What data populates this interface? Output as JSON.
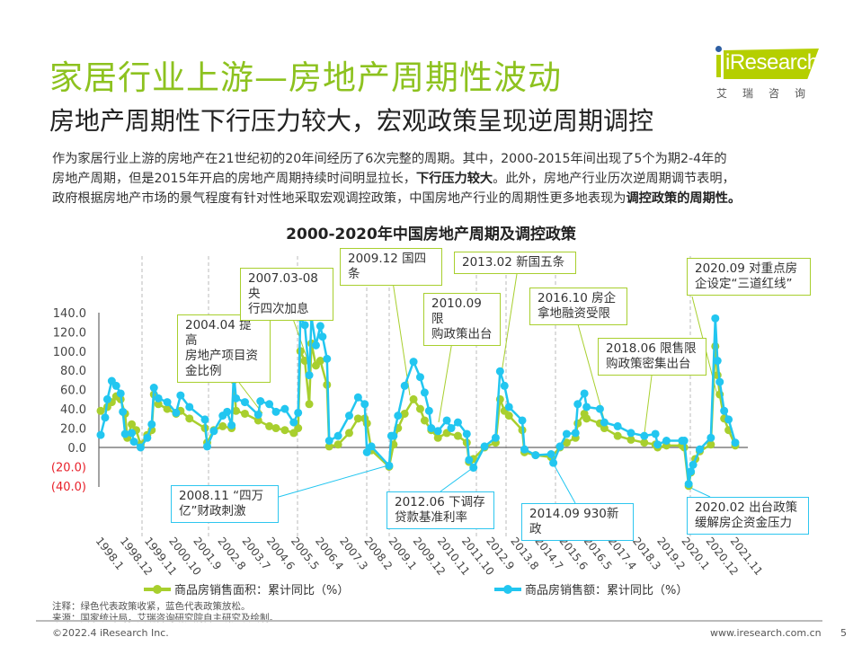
{
  "header": {
    "title": "家居行业上游—房地产周期性波动",
    "subtitle": "房地产周期性下行压力较大，宏观政策呈现逆周期调控",
    "logo_text": "iResearch",
    "logo_cn": "艾瑞咨询"
  },
  "body": {
    "line1": "作为家居行业上游的房地产在21世纪初的20年间经历了6次完整的周期。其中，2000-2015年间出现了5个为期2-4年的",
    "line2a": "房地产周期，但是2015年开启的房地产周期持续时间明显拉长，",
    "line2b": "下行压力较大",
    "line2c": "。此外，房地产行业历次逆周期调节表明，",
    "line3a": "政府根据房地产市场的景气程度有针对性地采取宏观调控政策，中国房地产行业的周期性更多地表现为",
    "line3b": "调控政策的周期性。"
  },
  "colors": {
    "title_green": "#8dc21f",
    "area_series": "#a8cf2e",
    "amount_series": "#22c6f0",
    "negative_tick": "#e8202a"
  },
  "annotations": {
    "a2004": {
      "l1": "2004.04 提高",
      "l2": "房地产项目资",
      "l3": "金比例"
    },
    "a2007": {
      "l1": "2007.03-08 央",
      "l2": "行四次加息"
    },
    "a2009": {
      "l1": "2009.12 国四条"
    },
    "a2010": {
      "l1": "2010.09 限",
      "l2": "购政策出台"
    },
    "a2013": {
      "l1": "2013.02 新国五条"
    },
    "a2016": {
      "l1": "2016.10 房企",
      "l2": "拿地融资受限"
    },
    "a2018": {
      "l1": "2018.06 限售限",
      "l2": "购政策密集出台"
    },
    "a2020s": {
      "l1": "2020.09 对重点房",
      "l2": "企设定“三道红线”"
    },
    "a2008": {
      "l1": "2008.11 “四万",
      "l2": "亿”财政刺激"
    },
    "a2012": {
      "l1": "2012.06 下调存",
      "l2": "贷款基准利率"
    },
    "a2014": {
      "l1": "2014.09 930新政"
    },
    "a2020": {
      "l1": "2020.02 出台政策",
      "l2": "缓解房企资金压力"
    }
  },
  "chart_data": {
    "type": "line",
    "title": "2000-2020年中国房地产周期及调控政策",
    "ylim": [
      -40,
      140
    ],
    "yticks": [
      "140.0",
      "120.0",
      "100.0",
      "80.0",
      "60.0",
      "40.0",
      "20.0",
      "0.0",
      "(20.0)",
      "(40.0)"
    ],
    "ytick_values": [
      140,
      120,
      100,
      80,
      60,
      40,
      20,
      0,
      -20,
      -40
    ],
    "xticks": [
      "1998.1",
      "1998.12",
      "1999.11",
      "2000.10",
      "2001.9",
      "2002.8",
      "2003.7",
      "2004.6",
      "2005.5",
      "2006.4",
      "2007.3",
      "2008.2",
      "2009.1",
      "2009.12",
      "2010.11",
      "2011.10",
      "2012.9",
      "2013.8",
      "2014.7",
      "2015.6",
      "2016.5",
      "2017.4",
      "2018.3",
      "2019.2",
      "2020.1",
      "2020.12",
      "2021.11"
    ],
    "legend": "bottom",
    "grid": false,
    "series": [
      {
        "name": "商品房销售面积：累计同比（%）",
        "color": "#a8cf2e",
        "points": [
          [
            "1998.1",
            38
          ],
          [
            "1998.4",
            42
          ],
          [
            "1998.6",
            47
          ],
          [
            "1998.8",
            53
          ],
          [
            "1998.10",
            50
          ],
          [
            "1998.12",
            35
          ],
          [
            "1999.1",
            10
          ],
          [
            "1999.3",
            24
          ],
          [
            "1999.5",
            18
          ],
          [
            "1999.7",
            3
          ],
          [
            "1999.10",
            13
          ],
          [
            "1999.12",
            18
          ],
          [
            "2000.1",
            55
          ],
          [
            "2000.3",
            45
          ],
          [
            "2000.7",
            40
          ],
          [
            "2000.11",
            35
          ],
          [
            "2001.1",
            38
          ],
          [
            "2001.5",
            30
          ],
          [
            "2001.12",
            20
          ],
          [
            "2002.1",
            5
          ],
          [
            "2002.4",
            18
          ],
          [
            "2002.8",
            22
          ],
          [
            "2002.12",
            20
          ],
          [
            "2003.1",
            70
          ],
          [
            "2003.2",
            38
          ],
          [
            "2003.6",
            35
          ],
          [
            "2003.12",
            28
          ],
          [
            "2004.5",
            22
          ],
          [
            "2004.8",
            20
          ],
          [
            "2004.12",
            18
          ],
          [
            "2005.4",
            15
          ],
          [
            "2005.6",
            20
          ],
          [
            "2005.7",
            100
          ],
          [
            "2005.9",
            90
          ],
          [
            "2005.11",
            45
          ],
          [
            "2005.12",
            108
          ],
          [
            "2006.2",
            85
          ],
          [
            "2006.4",
            90
          ],
          [
            "2006.7",
            65
          ],
          [
            "2006.8",
            1
          ],
          [
            "2006.12",
            3
          ],
          [
            "2007.5",
            15
          ],
          [
            "2007.9",
            30
          ],
          [
            "2007.12",
            30
          ],
          [
            "2008.1",
            25
          ],
          [
            "2008.3",
            -3
          ],
          [
            "2008.11",
            -20
          ],
          [
            "2009.1",
            3
          ],
          [
            "2009.3",
            20
          ],
          [
            "2009.6",
            35
          ],
          [
            "2009.10",
            50
          ],
          [
            "2010.1",
            40
          ],
          [
            "2010.3",
            28
          ],
          [
            "2010.6",
            18
          ],
          [
            "2010.9",
            10
          ],
          [
            "2011.1",
            15
          ],
          [
            "2011.6",
            12
          ],
          [
            "2011.10",
            5
          ],
          [
            "2011.11",
            -15
          ],
          [
            "2012.1",
            -12
          ],
          [
            "2012.6",
            0
          ],
          [
            "2012.11",
            5
          ],
          [
            "2013.1",
            50
          ],
          [
            "2013.3",
            38
          ],
          [
            "2013.5",
            33
          ],
          [
            "2013.11",
            18
          ],
          [
            "2013.12",
            -5
          ],
          [
            "2014.5",
            -8
          ],
          [
            "2014.12",
            -10
          ],
          [
            "2015.4",
            0
          ],
          [
            "2015.7",
            5
          ],
          [
            "2015.11",
            10
          ],
          [
            "2015.12",
            25
          ],
          [
            "2016.3",
            35
          ],
          [
            "2016.4",
            30
          ],
          [
            "2016.10",
            25
          ],
          [
            "2016.12",
            20
          ],
          [
            "2017.6",
            12
          ],
          [
            "2017.12",
            8
          ],
          [
            "2018.6",
            5
          ],
          [
            "2018.11",
            3
          ],
          [
            "2018.12",
            0
          ],
          [
            "2019.4",
            2
          ],
          [
            "2019.11",
            2
          ],
          [
            "2019.12",
            0
          ],
          [
            "2020.2",
            -40
          ],
          [
            "2020.3",
            -26
          ],
          [
            "2020.5",
            -12
          ],
          [
            "2020.7",
            -4
          ],
          [
            "2020.12",
            3
          ],
          [
            "2021.2",
            105
          ],
          [
            "2021.3",
            75
          ],
          [
            "2021.4",
            55
          ],
          [
            "2021.6",
            30
          ],
          [
            "2021.8",
            18
          ],
          [
            "2021.11",
            2
          ]
        ]
      },
      {
        "name": "商品房销售额：累计同比（%）",
        "color": "#22c6f0",
        "points": [
          [
            "1998.1",
            13
          ],
          [
            "1998.3",
            31
          ],
          [
            "1998.4",
            50
          ],
          [
            "1998.6",
            69
          ],
          [
            "1998.8",
            64
          ],
          [
            "1998.10",
            56
          ],
          [
            "1998.11",
            37
          ],
          [
            "1998.12",
            14
          ],
          [
            "1999.3",
            15
          ],
          [
            "1999.4",
            6
          ],
          [
            "1999.7",
            0
          ],
          [
            "1999.10",
            10
          ],
          [
            "1999.12",
            24
          ],
          [
            "2000.1",
            62
          ],
          [
            "2000.3",
            51
          ],
          [
            "2000.7",
            47
          ],
          [
            "2000.11",
            36
          ],
          [
            "2001.1",
            54
          ],
          [
            "2001.5",
            42
          ],
          [
            "2001.12",
            29
          ],
          [
            "2002.1",
            1
          ],
          [
            "2002.4",
            17
          ],
          [
            "2002.8",
            33
          ],
          [
            "2002.10",
            37
          ],
          [
            "2002.12",
            23
          ],
          [
            "2003.1",
            77
          ],
          [
            "2003.2",
            51
          ],
          [
            "2003.6",
            47
          ],
          [
            "2003.12",
            34
          ],
          [
            "2004.1",
            48
          ],
          [
            "2004.5",
            45
          ],
          [
            "2004.8",
            37
          ],
          [
            "2004.12",
            40
          ],
          [
            "2005.4",
            26
          ],
          [
            "2005.6",
            36
          ],
          [
            "2005.7",
            135
          ],
          [
            "2005.9",
            127
          ],
          [
            "2005.11",
            75
          ],
          [
            "2005.12",
            135
          ],
          [
            "2006.2",
            106
          ],
          [
            "2006.4",
            126
          ],
          [
            "2006.5",
            115
          ],
          [
            "2006.7",
            92
          ],
          [
            "2006.8",
            7
          ],
          [
            "2006.12",
            12
          ],
          [
            "2007.5",
            33
          ],
          [
            "2007.9",
            52
          ],
          [
            "2007.12",
            45
          ],
          [
            "2008.1",
            -5
          ],
          [
            "2008.3",
            1
          ],
          [
            "2008.11",
            -19
          ],
          [
            "2008.12",
            12
          ],
          [
            "2009.1",
            12
          ],
          [
            "2009.3",
            33
          ],
          [
            "2009.6",
            64
          ],
          [
            "2009.10",
            89
          ],
          [
            "2010.1",
            73
          ],
          [
            "2010.3",
            57
          ],
          [
            "2010.5",
            38
          ],
          [
            "2010.6",
            20
          ],
          [
            "2010.9",
            17
          ],
          [
            "2011.1",
            28
          ],
          [
            "2011.3",
            20
          ],
          [
            "2011.6",
            26
          ],
          [
            "2011.10",
            14
          ],
          [
            "2011.11",
            -13
          ],
          [
            "2012.1",
            -21
          ],
          [
            "2012.6",
            1
          ],
          [
            "2012.11",
            10
          ],
          [
            "2013.1",
            79
          ],
          [
            "2013.3",
            64
          ],
          [
            "2013.5",
            42
          ],
          [
            "2013.11",
            28
          ],
          [
            "2013.12",
            -2
          ],
          [
            "2014.5",
            -8
          ],
          [
            "2014.12",
            -7
          ],
          [
            "2015.1",
            -16
          ],
          [
            "2015.4",
            1
          ],
          [
            "2015.7",
            14
          ],
          [
            "2015.11",
            15
          ],
          [
            "2015.12",
            45
          ],
          [
            "2016.3",
            56
          ],
          [
            "2016.4",
            42
          ],
          [
            "2016.10",
            40
          ],
          [
            "2016.12",
            26
          ],
          [
            "2017.6",
            22
          ],
          [
            "2017.12",
            15
          ],
          [
            "2018.6",
            12
          ],
          [
            "2018.11",
            14
          ],
          [
            "2018.12",
            3
          ],
          [
            "2019.4",
            7
          ],
          [
            "2019.11",
            7
          ],
          [
            "2019.12",
            7
          ],
          [
            "2020.2",
            -38
          ],
          [
            "2020.3",
            -25
          ],
          [
            "2020.4",
            -18
          ],
          [
            "2020.7",
            -2
          ],
          [
            "2020.12",
            10
          ],
          [
            "2021.2",
            134
          ],
          [
            "2021.3",
            90
          ],
          [
            "2021.4",
            68
          ],
          [
            "2021.6",
            38
          ],
          [
            "2021.8",
            29
          ],
          [
            "2021.11",
            5
          ]
        ]
      }
    ]
  },
  "notes": {
    "note": "注释：绿色代表政策收紧，蓝色代表政策放松。",
    "source": "来源：国家统计局，艾瑞咨询研究院自主研究及绘制。"
  },
  "footer": {
    "copyright": "©2022.4 iResearch Inc.",
    "website": "www.iresearch.com.cn",
    "page": "5"
  }
}
